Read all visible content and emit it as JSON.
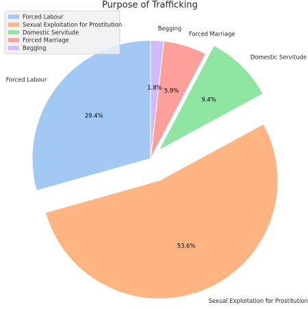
{
  "chart_data": {
    "type": "pie",
    "title": "Purpose of Trafficking",
    "categories": [
      "Forced Labour",
      "Sexual Exploitation for Prostitution",
      "Domestic Servitude",
      "Forced Marriage",
      "Begging"
    ],
    "values": [
      29.4,
      53.6,
      9.4,
      5.9,
      1.8
    ],
    "value_labels": [
      "29.4%",
      "53.6%",
      "9.4%",
      "5.9%",
      "1.8%"
    ],
    "colors": [
      "#a1c9f4",
      "#ffb482",
      "#8de5a1",
      "#ff9f9b",
      "#d0bbff"
    ],
    "explode": [
      0,
      0.2,
      0.1,
      0,
      0
    ],
    "start_angle": 90,
    "direction": "counterclockwise",
    "legend": {
      "position": "top-left",
      "entries": [
        "Forced Labour",
        "Sexual Exploitation for Prostitution",
        "Domestic Servitude",
        "Forced Marriage",
        "Begging"
      ]
    }
  }
}
